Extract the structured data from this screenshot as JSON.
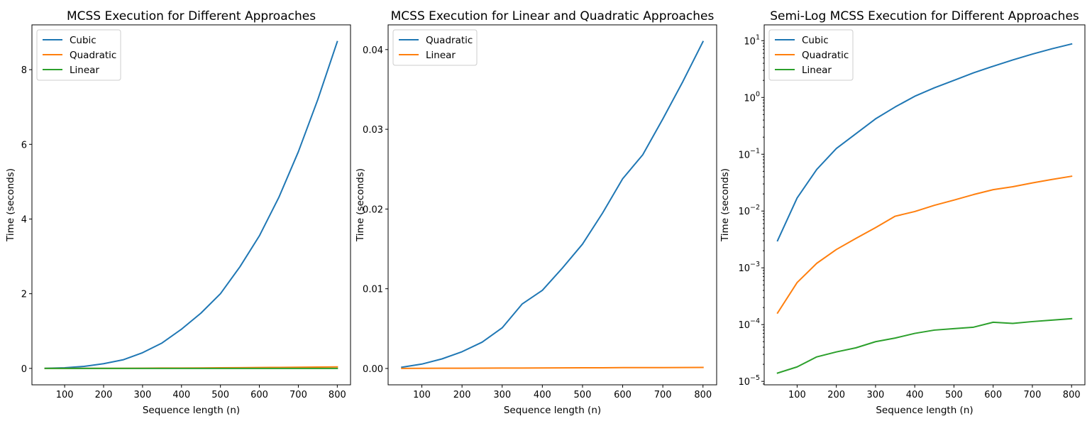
{
  "colors": {
    "blue": "#1f77b4",
    "orange": "#ff7f0e",
    "green": "#2ca02c"
  },
  "chart_data": [
    {
      "type": "line",
      "title": "MCSS Execution for Different Approaches",
      "xlabel": "Sequence length (n)",
      "ylabel": "Time (seconds)",
      "xlim": [
        16,
        834
      ],
      "ylim": [
        -0.44,
        9.2
      ],
      "yscale": "linear",
      "xticks": [
        100,
        200,
        300,
        400,
        500,
        600,
        700,
        800
      ],
      "yticks": [
        0,
        2,
        4,
        6,
        8
      ],
      "ytick_labels": [
        "0",
        "2",
        "4",
        "6",
        "8"
      ],
      "grid": false,
      "legend": "upper left",
      "x": [
        50,
        100,
        150,
        200,
        250,
        300,
        350,
        400,
        450,
        500,
        550,
        600,
        650,
        700,
        750,
        800
      ],
      "series": [
        {
          "name": "Cubic",
          "color": "#1f77b4",
          "values": [
            0.003,
            0.017,
            0.054,
            0.126,
            0.23,
            0.42,
            0.68,
            1.05,
            1.48,
            2.0,
            2.72,
            3.55,
            4.58,
            5.8,
            7.2,
            8.75
          ]
        },
        {
          "name": "Quadratic",
          "color": "#ff7f0e",
          "values": [
            0.00016,
            0.00055,
            0.0012,
            0.0021,
            0.0033,
            0.0051,
            0.0081,
            0.0098,
            0.0126,
            0.0156,
            0.0195,
            0.0238,
            0.0268,
            0.0313,
            0.036,
            0.041
          ]
        },
        {
          "name": "Linear",
          "color": "#2ca02c",
          "values": [
            1.4e-05,
            1.8e-05,
            2.7e-05,
            3.3e-05,
            3.9e-05,
            5e-05,
            5.8e-05,
            7e-05,
            8e-05,
            8.5e-05,
            9e-05,
            0.00011,
            0.000105,
            0.000113,
            0.00012,
            0.000127
          ]
        }
      ]
    },
    {
      "type": "line",
      "title": "MCSS Execution for Linear and Quadratic Approaches",
      "xlabel": "Sequence length (n)",
      "ylabel": "Time (seconds)",
      "xlim": [
        16,
        834
      ],
      "ylim": [
        -0.00205,
        0.0431
      ],
      "yscale": "linear",
      "xticks": [
        100,
        200,
        300,
        400,
        500,
        600,
        700,
        800
      ],
      "yticks": [
        0,
        0.01,
        0.02,
        0.03,
        0.04
      ],
      "ytick_labels": [
        "0.00",
        "0.01",
        "0.02",
        "0.03",
        "0.04"
      ],
      "grid": false,
      "legend": "upper left",
      "x": [
        50,
        100,
        150,
        200,
        250,
        300,
        350,
        400,
        450,
        500,
        550,
        600,
        650,
        700,
        750,
        800
      ],
      "series": [
        {
          "name": "Quadratic",
          "color": "#1f77b4",
          "values": [
            0.00016,
            0.00055,
            0.0012,
            0.0021,
            0.0033,
            0.0051,
            0.0081,
            0.0098,
            0.0126,
            0.0156,
            0.0195,
            0.0238,
            0.0268,
            0.0313,
            0.036,
            0.041
          ]
        },
        {
          "name": "Linear",
          "color": "#ff7f0e",
          "values": [
            1.4e-05,
            1.8e-05,
            2.7e-05,
            3.3e-05,
            3.9e-05,
            5e-05,
            5.8e-05,
            7e-05,
            8e-05,
            8.5e-05,
            9e-05,
            0.00011,
            0.000105,
            0.000113,
            0.00012,
            0.000127
          ]
        }
      ]
    },
    {
      "type": "line",
      "title": "Semi-Log MCSS Execution for Different Approaches",
      "xlabel": "Sequence length (n)",
      "ylabel": "Time (seconds)",
      "xlim": [
        16,
        834
      ],
      "ylim": [
        8.7e-06,
        19
      ],
      "yscale": "log",
      "xticks": [
        100,
        200,
        300,
        400,
        500,
        600,
        700,
        800
      ],
      "yticks": [
        1e-05,
        0.0001,
        0.001,
        0.01,
        0.1,
        1,
        10
      ],
      "ytick_labels": [
        "10",
        "10",
        "10",
        "10",
        "10",
        "10",
        "10"
      ],
      "ytick_exponents": [
        "−5",
        "−4",
        "−3",
        "−2",
        "−1",
        "0",
        "1"
      ],
      "grid": false,
      "legend": "upper left",
      "x": [
        50,
        100,
        150,
        200,
        250,
        300,
        350,
        400,
        450,
        500,
        550,
        600,
        650,
        700,
        750,
        800
      ],
      "series": [
        {
          "name": "Cubic",
          "color": "#1f77b4",
          "values": [
            0.003,
            0.017,
            0.054,
            0.126,
            0.23,
            0.42,
            0.68,
            1.05,
            1.48,
            2.0,
            2.72,
            3.55,
            4.58,
            5.8,
            7.2,
            8.75
          ]
        },
        {
          "name": "Quadratic",
          "color": "#ff7f0e",
          "values": [
            0.00016,
            0.00055,
            0.0012,
            0.0021,
            0.0033,
            0.0051,
            0.0081,
            0.0098,
            0.0126,
            0.0156,
            0.0195,
            0.0238,
            0.0268,
            0.0313,
            0.036,
            0.041
          ]
        },
        {
          "name": "Linear",
          "color": "#2ca02c",
          "values": [
            1.4e-05,
            1.8e-05,
            2.7e-05,
            3.3e-05,
            3.9e-05,
            5e-05,
            5.8e-05,
            7e-05,
            8e-05,
            8.5e-05,
            9e-05,
            0.00011,
            0.000105,
            0.000113,
            0.00012,
            0.000127
          ]
        }
      ]
    }
  ]
}
